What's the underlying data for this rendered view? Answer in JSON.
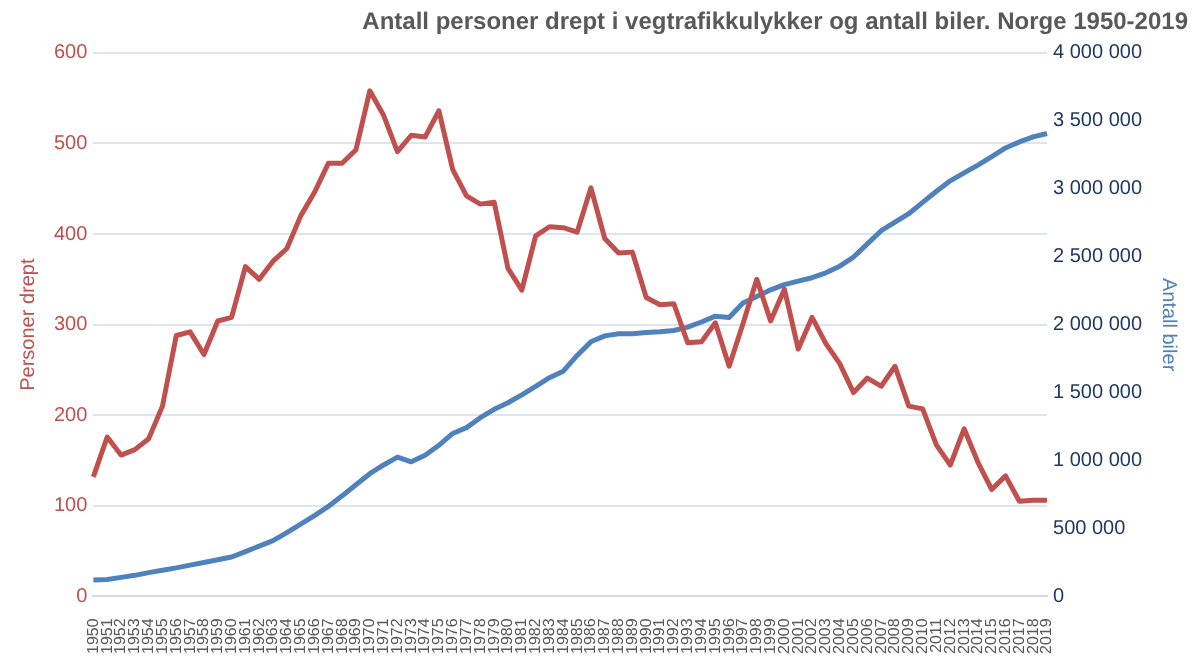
{
  "chart_data": {
    "type": "line",
    "title": "Antall personer drept i vegtrafikkulykker og antall biler. Norge 1950-2019",
    "ylabel": "Personer drept",
    "y2label": "Antall biler",
    "categories": [
      "1950",
      "1951",
      "1952",
      "1953",
      "1954",
      "1955",
      "1956",
      "1957",
      "1958",
      "1959",
      "1960",
      "1961",
      "1962",
      "1963",
      "1964",
      "1965",
      "1966",
      "1967",
      "1968",
      "1969",
      "1970",
      "1971",
      "1972",
      "1973",
      "1974",
      "1975",
      "1976",
      "1977",
      "1978",
      "1979",
      "1980",
      "1981",
      "1982",
      "1983",
      "1984",
      "1985",
      "1986",
      "1987",
      "1988",
      "1989",
      "1990",
      "1991",
      "1992",
      "1993",
      "1994",
      "1995",
      "1996",
      "1997",
      "1998",
      "1999",
      "2000",
      "2001",
      "2002",
      "2003",
      "2004",
      "2005",
      "2006",
      "2007",
      "2008",
      "2009",
      "2010",
      "2011",
      "2012",
      "2013",
      "2014",
      "2015",
      "2016",
      "2017",
      "2018",
      "2019"
    ],
    "series": [
      {
        "color": "#c0504d",
        "values": [
          132,
          176,
          156,
          162,
          174,
          210,
          288,
          292,
          267,
          304,
          308,
          364,
          350,
          370,
          384,
          420,
          446,
          478,
          478,
          493,
          558,
          531,
          491,
          509,
          507,
          536,
          471,
          442,
          433,
          435,
          362,
          338,
          398,
          408,
          407,
          402,
          451,
          395,
          379,
          380,
          330,
          322,
          323,
          280,
          281,
          302,
          254,
          301,
          350,
          304,
          339,
          273,
          308,
          279,
          257,
          225,
          241,
          232,
          254,
          210,
          207,
          167,
          145,
          185,
          148,
          118,
          133,
          105,
          106,
          106
        ]
      },
      {
        "color": "#4f81bd",
        "axis": "y2",
        "values": [
          120000,
          125000,
          140000,
          155000,
          175000,
          193000,
          210000,
          230000,
          250000,
          270000,
          290000,
          330000,
          370000,
          410000,
          470000,
          532000,
          595000,
          662000,
          740000,
          822000,
          903000,
          967000,
          1025000,
          990000,
          1039000,
          1112000,
          1199000,
          1242000,
          1315000,
          1377000,
          1425000,
          1483000,
          1546000,
          1609000,
          1657000,
          1773000,
          1874000,
          1917000,
          1932000,
          1932000,
          1942000,
          1947000,
          1957000,
          1981000,
          2019000,
          2062000,
          2053000,
          2159000,
          2207000,
          2256000,
          2294000,
          2320000,
          2345000,
          2381000,
          2430000,
          2497000,
          2594000,
          2691000,
          2754000,
          2816000,
          2899000,
          2981000,
          3058000,
          3116000,
          3174000,
          3236000,
          3300000,
          3344000,
          3381000,
          3406000
        ]
      }
    ],
    "ylim": [
      0,
      600
    ],
    "yticks": [
      0,
      100,
      200,
      300,
      400,
      500,
      600
    ],
    "y2lim": [
      0,
      4000000
    ],
    "y2ticks": [
      0,
      {
        "value": 500000,
        "label": "500 000"
      },
      {
        "value": 1000000,
        "label": "1 000 000"
      },
      {
        "value": 1500000,
        "label": "1 500 000"
      },
      {
        "value": 2000000,
        "label": "2 000 000"
      },
      {
        "value": 2500000,
        "label": "2 500 000"
      },
      {
        "value": 3000000,
        "label": "3 000 000"
      },
      {
        "value": 3500000,
        "label": "3 500 000"
      },
      {
        "value": 4000000,
        "label": "4 000 000"
      }
    ],
    "grid": "y",
    "legend": false,
    "marker": "none",
    "line_style": "solid"
  }
}
